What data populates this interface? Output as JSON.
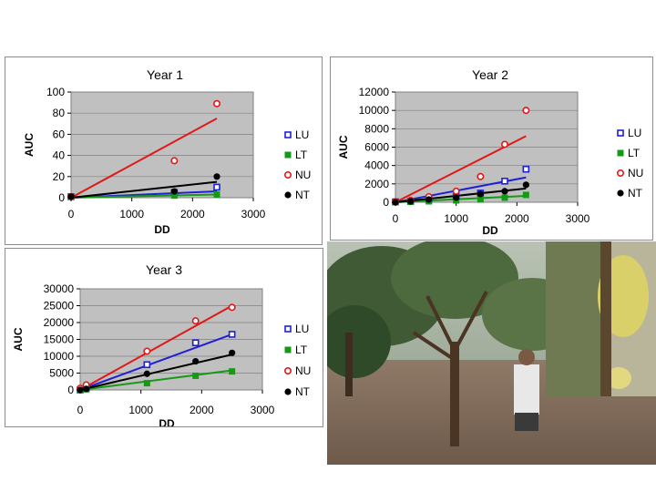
{
  "colors": {
    "LU": "#1f1fd6",
    "LT": "#159a15",
    "NU": "#e01818",
    "NT": "#000000",
    "plot_bg": "#c0c0c0"
  },
  "chart_data": [
    {
      "type": "scatter",
      "title": "Year 1",
      "xlabel": "DD",
      "ylabel": "AUC",
      "xlim": [
        0,
        3000
      ],
      "ylim": [
        0,
        100
      ],
      "xticks": [
        "0",
        "1000",
        "2000",
        "3000"
      ],
      "yticks": [
        "0",
        "20",
        "40",
        "60",
        "80",
        "100"
      ],
      "legend": "right",
      "series": [
        {
          "name": "LU",
          "points": [
            [
              0,
              1
            ],
            [
              1700,
              5
            ],
            [
              2400,
              10
            ]
          ],
          "fit": [
            [
              0,
              0
            ],
            [
              2400,
              6
            ]
          ]
        },
        {
          "name": "LT",
          "points": [
            [
              0,
              1
            ],
            [
              1700,
              2
            ],
            [
              2400,
              3
            ]
          ],
          "fit": [
            [
              0,
              0
            ],
            [
              2400,
              3
            ]
          ]
        },
        {
          "name": "NU",
          "points": [
            [
              0,
              1
            ],
            [
              1700,
              35
            ],
            [
              2400,
              89
            ]
          ],
          "fit": [
            [
              0,
              0
            ],
            [
              2400,
              75
            ]
          ]
        },
        {
          "name": "NT",
          "points": [
            [
              0,
              1
            ],
            [
              1700,
              6
            ],
            [
              2400,
              20
            ]
          ],
          "fit": [
            [
              0,
              0
            ],
            [
              2400,
              15
            ]
          ]
        }
      ]
    },
    {
      "type": "scatter",
      "title": "Year 2",
      "xlabel": "DD",
      "ylabel": "AUC",
      "xlim": [
        0,
        3000
      ],
      "ylim": [
        0,
        12000
      ],
      "xticks": [
        "0",
        "1000",
        "2000",
        "3000"
      ],
      "yticks": [
        "0",
        "2000",
        "4000",
        "6000",
        "8000",
        "10000",
        "12000"
      ],
      "legend": "right",
      "series": [
        {
          "name": "LU",
          "points": [
            [
              0,
              50
            ],
            [
              250,
              100
            ],
            [
              550,
              250
            ],
            [
              1000,
              600
            ],
            [
              1400,
              1000
            ],
            [
              1800,
              2300
            ],
            [
              2150,
              3600
            ]
          ],
          "fit": [
            [
              0,
              0
            ],
            [
              2150,
              2700
            ]
          ]
        },
        {
          "name": "LT",
          "points": [
            [
              0,
              0
            ],
            [
              250,
              50
            ],
            [
              550,
              100
            ],
            [
              1000,
              200
            ],
            [
              1400,
              300
            ],
            [
              1800,
              500
            ],
            [
              2150,
              800
            ]
          ],
          "fit": [
            [
              0,
              0
            ],
            [
              2150,
              700
            ]
          ]
        },
        {
          "name": "NU",
          "points": [
            [
              0,
              50
            ],
            [
              250,
              200
            ],
            [
              550,
              600
            ],
            [
              1000,
              1200
            ],
            [
              1400,
              2800
            ],
            [
              1800,
              6300
            ],
            [
              2150,
              10000
            ]
          ],
          "fit": [
            [
              0,
              0
            ],
            [
              2150,
              7200
            ]
          ]
        },
        {
          "name": "NT",
          "points": [
            [
              0,
              0
            ],
            [
              250,
              100
            ],
            [
              550,
              300
            ],
            [
              1000,
              500
            ],
            [
              1400,
              900
            ],
            [
              1800,
              1200
            ],
            [
              2150,
              1900
            ]
          ],
          "fit": [
            [
              0,
              0
            ],
            [
              2150,
              1500
            ]
          ]
        }
      ]
    },
    {
      "type": "scatter",
      "title": "Year 3",
      "xlabel": "DD",
      "ylabel": "AUC",
      "xlim": [
        0,
        3000
      ],
      "ylim": [
        0,
        30000
      ],
      "xticks": [
        "0",
        "1000",
        "2000",
        "3000"
      ],
      "yticks": [
        "0",
        "5000",
        "10000",
        "15000",
        "20000",
        "25000",
        "30000"
      ],
      "legend": "right",
      "series": [
        {
          "name": "LU",
          "points": [
            [
              0,
              0
            ],
            [
              100,
              500
            ],
            [
              1100,
              7500
            ],
            [
              1900,
              14000
            ],
            [
              2500,
              16500
            ]
          ],
          "fit": [
            [
              0,
              0
            ],
            [
              2500,
              16500
            ]
          ]
        },
        {
          "name": "LT",
          "points": [
            [
              0,
              0
            ],
            [
              100,
              200
            ],
            [
              1100,
              2000
            ],
            [
              1900,
              4200
            ],
            [
              2500,
              5500
            ]
          ],
          "fit": [
            [
              0,
              0
            ],
            [
              2500,
              5800
            ]
          ]
        },
        {
          "name": "NU",
          "points": [
            [
              0,
              500
            ],
            [
              100,
              1500
            ],
            [
              1100,
              11500
            ],
            [
              1900,
              20500
            ],
            [
              2500,
              24500
            ]
          ],
          "fit": [
            [
              0,
              0
            ],
            [
              2500,
              25000
            ]
          ]
        },
        {
          "name": "NT",
          "points": [
            [
              0,
              0
            ],
            [
              100,
              300
            ],
            [
              1100,
              4800
            ],
            [
              1900,
              8500
            ],
            [
              2500,
              11000
            ]
          ],
          "fit": [
            [
              0,
              0
            ],
            [
              2500,
              10500
            ]
          ]
        }
      ]
    }
  ]
}
